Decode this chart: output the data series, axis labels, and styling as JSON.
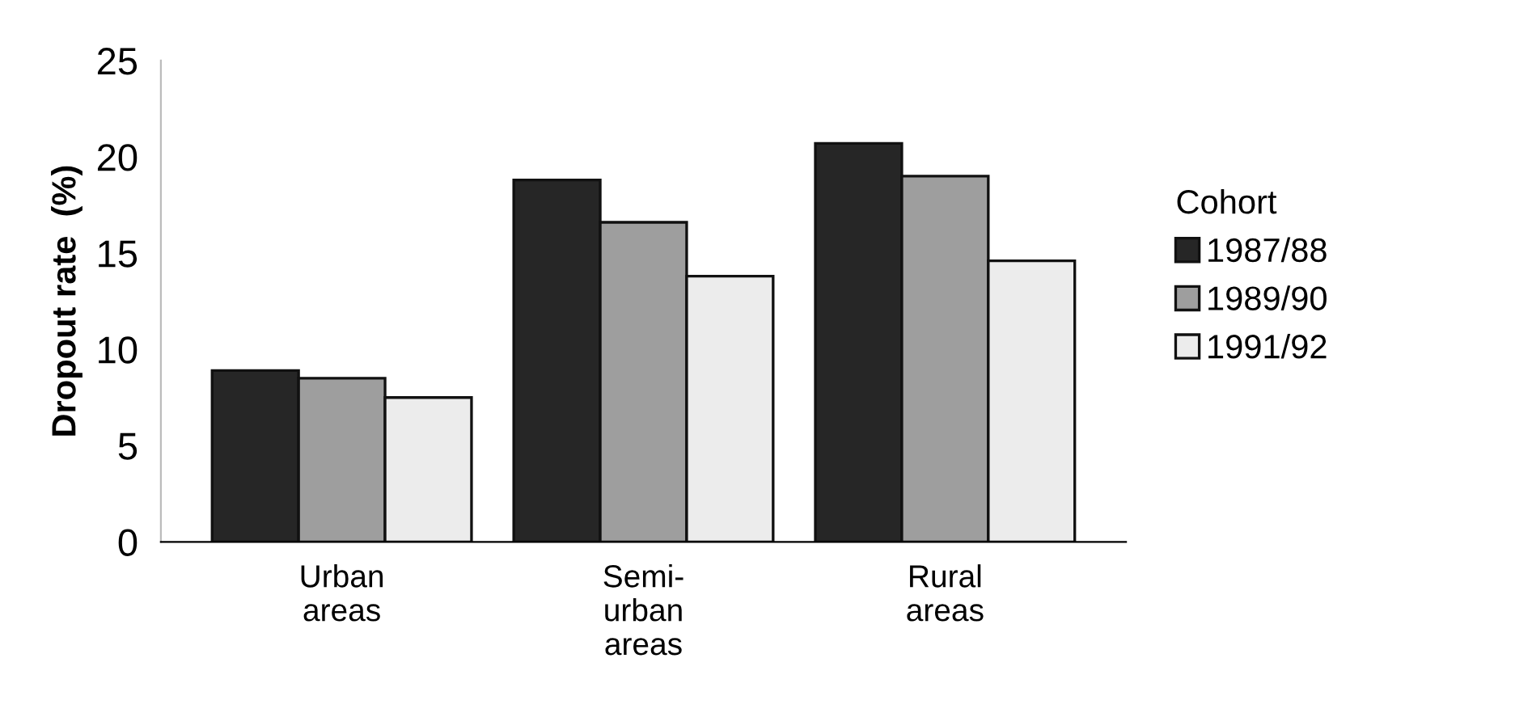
{
  "chart_data": {
    "type": "bar",
    "ylabel": "Dropout rate  (%)",
    "legend_title": "Cohort",
    "categories": [
      "Urban\nareas",
      "Semi-\nurban\nareas",
      "Rural\nareas"
    ],
    "series": [
      {
        "name": "1987/88",
        "color": "#262626",
        "values": [
          8.9,
          18.8,
          20.7
        ]
      },
      {
        "name": "1989/90",
        "color": "#9e9e9e",
        "values": [
          8.5,
          16.6,
          19.0
        ]
      },
      {
        "name": "1991/92",
        "color": "#ececec",
        "values": [
          7.5,
          13.8,
          14.6
        ]
      }
    ],
    "ylim": [
      0,
      25
    ],
    "yticks": [
      0,
      5,
      10,
      15,
      20,
      25
    ],
    "grid": false,
    "legend": "right"
  }
}
